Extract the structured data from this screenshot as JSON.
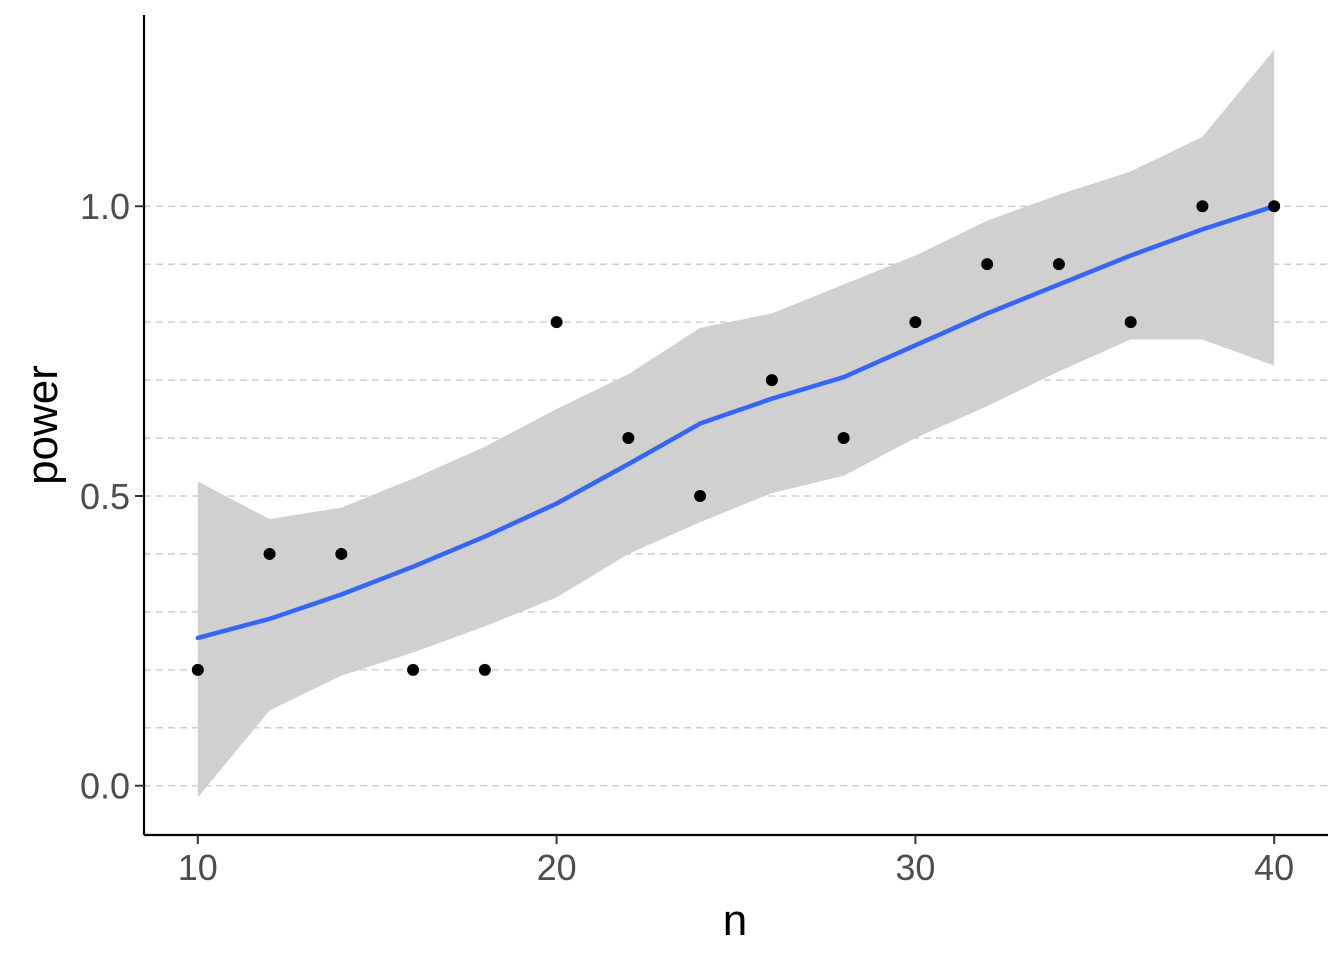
{
  "chart_data": {
    "type": "scatter",
    "xlabel": "n",
    "ylabel": "power",
    "xlim": [
      8.5,
      41.5
    ],
    "ylim": [
      -0.085,
      1.33
    ],
    "x_ticks": [
      10,
      20,
      30,
      40
    ],
    "x_tick_labels": [
      "10",
      "20",
      "30",
      "40"
    ],
    "y_ticks": [
      0.0,
      0.5,
      1.0
    ],
    "y_tick_labels": [
      "0.0",
      "0.5",
      "1.0"
    ],
    "y_minor_gridlines": [
      0.1,
      0.2,
      0.3,
      0.4,
      0.6,
      0.7,
      0.8,
      0.9
    ],
    "grid": "horizontal dashed",
    "points": {
      "x": [
        10,
        12,
        14,
        16,
        18,
        20,
        22,
        24,
        26,
        28,
        30,
        32,
        34,
        36,
        38,
        40
      ],
      "y": [
        0.2,
        0.4,
        0.4,
        0.2,
        0.2,
        0.8,
        0.6,
        0.5,
        0.7,
        0.6,
        0.8,
        0.9,
        0.9,
        0.8,
        1.0,
        1.0
      ]
    },
    "smooth": {
      "x": [
        10,
        12,
        14,
        16,
        18,
        20,
        22,
        24,
        26,
        28,
        30,
        32,
        34,
        36,
        38,
        40
      ],
      "y": [
        0.255,
        0.288,
        0.33,
        0.378,
        0.43,
        0.487,
        0.555,
        0.625,
        0.668,
        0.705,
        0.76,
        0.815,
        0.865,
        0.915,
        0.96,
        1.0
      ],
      "lower": [
        -0.02,
        0.13,
        0.19,
        0.23,
        0.275,
        0.325,
        0.4,
        0.455,
        0.505,
        0.535,
        0.6,
        0.655,
        0.715,
        0.77,
        0.77,
        0.725
      ],
      "upper": [
        0.525,
        0.46,
        0.48,
        0.53,
        0.585,
        0.65,
        0.71,
        0.79,
        0.815,
        0.865,
        0.915,
        0.975,
        1.02,
        1.06,
        1.12,
        1.27
      ]
    },
    "colors": {
      "points": "#000000",
      "smooth_line": "#3366FF",
      "ribbon": "#D0D0D0",
      "gridline": "#C8C8C8",
      "axis": "#000000"
    }
  }
}
